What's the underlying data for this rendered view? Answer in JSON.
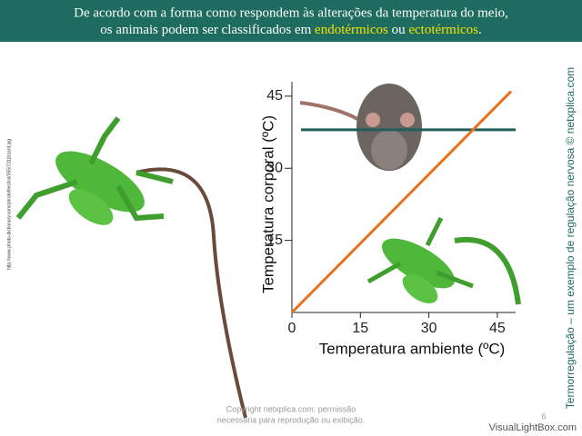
{
  "header": {
    "line1": "De acordo com a forma como respondem às alterações da temperatura do meio,",
    "line2_start": "os animais podem ser classificados em ",
    "term1": "endotérmicos",
    "line2_mid": " ou ",
    "term2": "ectotérmicos",
    "line2_end": "."
  },
  "side_text": "Termorregulação – um exemplo de regulação nervosa © netxplica.com",
  "image_credit": "http://www.photo-dictionary.com/phrotofiles/list/355/7311lizard.jpg",
  "copyright": {
    "line1": "Copyright netxplica.com: permissão",
    "line2": "necessária para reprodução ou exibição."
  },
  "page_number": "6",
  "watermark": "VisualLightBox.com",
  "chart_data": {
    "type": "line",
    "xlabel": "Temperatura ambiente (ºC)",
    "ylabel": "Temperatura corporal (ºC)",
    "xlim": [
      0,
      49
    ],
    "ylim": [
      0,
      48
    ],
    "xticks": [
      0,
      15,
      30,
      45
    ],
    "yticks": [
      15,
      30,
      45
    ],
    "series": [
      {
        "color": "#1f5f5b",
        "x": [
          2,
          49
        ],
        "values": [
          38,
          38
        ]
      },
      {
        "color": "#e8711e",
        "x": [
          0,
          48
        ],
        "values": [
          0,
          46
        ]
      }
    ]
  }
}
